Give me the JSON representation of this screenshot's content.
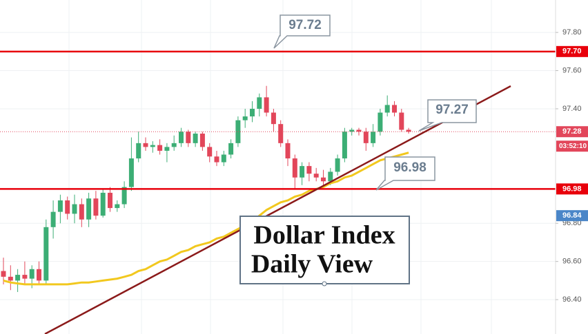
{
  "chart_data": {
    "type": "candlestick",
    "ylim": [
      96.22,
      97.97
    ],
    "yticks": [
      {
        "value": 96.4,
        "label": "96.40"
      },
      {
        "value": 96.6,
        "label": "96.60"
      },
      {
        "value": 96.8,
        "label": "96.80"
      },
      {
        "value": 97.4,
        "label": "97.40"
      },
      {
        "value": 97.6,
        "label": "97.60"
      },
      {
        "value": 97.8,
        "label": "97.80"
      }
    ],
    "grid": true,
    "up_color": "#3cae75",
    "down_color": "#e2465a",
    "open": [
      96.55,
      96.52,
      96.5,
      96.53,
      96.51,
      96.56,
      96.5,
      96.78,
      96.86,
      96.92,
      96.85,
      96.9,
      96.82,
      96.93,
      96.84,
      96.96,
      96.88,
      96.9,
      96.99,
      97.14,
      97.22,
      97.2,
      97.21,
      97.18,
      97.2,
      97.22,
      97.28,
      97.22,
      97.27,
      97.2,
      97.15,
      97.12,
      97.16,
      97.22,
      97.34,
      97.36,
      97.4,
      97.46,
      97.38,
      97.32,
      97.22,
      97.14,
      97.04,
      97.1,
      97.06,
      97.04,
      97.02,
      97.07,
      97.14,
      97.28,
      97.29,
      97.28,
      97.22,
      97.28,
      97.38,
      97.42,
      97.38,
      97.29
    ],
    "high": [
      96.62,
      96.58,
      96.56,
      96.6,
      96.58,
      96.6,
      96.82,
      96.92,
      96.95,
      96.94,
      96.95,
      96.93,
      96.96,
      96.97,
      96.98,
      96.99,
      96.92,
      97.02,
      97.25,
      97.28,
      97.25,
      97.23,
      97.24,
      97.22,
      97.26,
      97.3,
      97.29,
      97.28,
      97.28,
      97.22,
      97.18,
      97.18,
      97.24,
      97.36,
      97.4,
      97.44,
      97.48,
      97.52,
      97.4,
      97.34,
      97.24,
      97.16,
      97.12,
      97.12,
      97.09,
      97.08,
      97.09,
      97.16,
      97.3,
      97.3,
      97.3,
      97.3,
      97.32,
      97.4,
      97.47,
      97.44,
      97.4,
      97.3
    ],
    "low": [
      96.48,
      96.45,
      96.44,
      96.48,
      96.46,
      96.48,
      96.48,
      96.72,
      96.8,
      96.82,
      96.8,
      96.78,
      96.78,
      96.82,
      96.83,
      96.86,
      96.86,
      96.88,
      96.97,
      97.12,
      97.18,
      97.17,
      97.16,
      97.12,
      97.18,
      97.2,
      97.2,
      97.2,
      97.18,
      97.12,
      97.1,
      97.1,
      97.14,
      97.2,
      97.3,
      97.33,
      97.36,
      97.36,
      97.28,
      97.2,
      97.1,
      96.98,
      97.0,
      97.02,
      97.02,
      97.0,
      97.0,
      97.05,
      97.12,
      97.26,
      97.26,
      97.18,
      97.2,
      97.26,
      97.36,
      97.36,
      97.28,
      97.27
    ],
    "close": [
      96.52,
      96.5,
      96.53,
      96.51,
      96.56,
      96.5,
      96.78,
      96.86,
      96.92,
      96.85,
      96.9,
      96.82,
      96.93,
      96.84,
      96.96,
      96.88,
      96.9,
      96.99,
      97.14,
      97.22,
      97.2,
      97.21,
      97.18,
      97.2,
      97.22,
      97.28,
      97.22,
      97.27,
      97.2,
      97.15,
      97.12,
      97.16,
      97.22,
      97.34,
      97.36,
      97.4,
      97.46,
      97.38,
      97.32,
      97.22,
      97.14,
      97.04,
      97.1,
      97.06,
      97.04,
      97.02,
      97.07,
      97.14,
      97.28,
      97.29,
      97.28,
      97.22,
      97.28,
      97.38,
      97.42,
      97.38,
      97.29,
      97.28
    ],
    "moving_average": {
      "color": "#f2c81e",
      "values": [
        96.5,
        96.49,
        96.485,
        96.48,
        96.48,
        96.48,
        96.48,
        96.48,
        96.48,
        96.48,
        96.485,
        96.49,
        96.49,
        96.495,
        96.5,
        96.505,
        96.51,
        96.52,
        96.53,
        96.55,
        96.56,
        96.58,
        96.6,
        96.61,
        96.63,
        96.65,
        96.66,
        96.68,
        96.69,
        96.7,
        96.72,
        96.73,
        96.75,
        96.77,
        96.79,
        96.81,
        96.84,
        96.87,
        96.89,
        96.91,
        96.92,
        96.94,
        96.95,
        96.97,
        96.98,
        96.99,
        97.01,
        97.02,
        97.04,
        97.05,
        97.07,
        97.09,
        97.11,
        97.13,
        97.14,
        97.15,
        97.16,
        97.17
      ]
    },
    "price_tags": [
      {
        "value": 97.7,
        "label": "97.70",
        "color": "#e8000b",
        "line": "solid"
      },
      {
        "value": 97.28,
        "label": "97.28",
        "color": "#e2465a",
        "line": "dotted"
      },
      {
        "value": 96.98,
        "label": "96.98",
        "color": "#e8000b",
        "line": "solid"
      },
      {
        "value": 96.84,
        "label": "96.84",
        "color": "#4a86c8",
        "line": "none"
      }
    ],
    "countdown": "03:52:10",
    "callouts": [
      "97.72",
      "97.27",
      "96.98"
    ],
    "title_lines": [
      "Dollar Index",
      "Daily View"
    ]
  }
}
